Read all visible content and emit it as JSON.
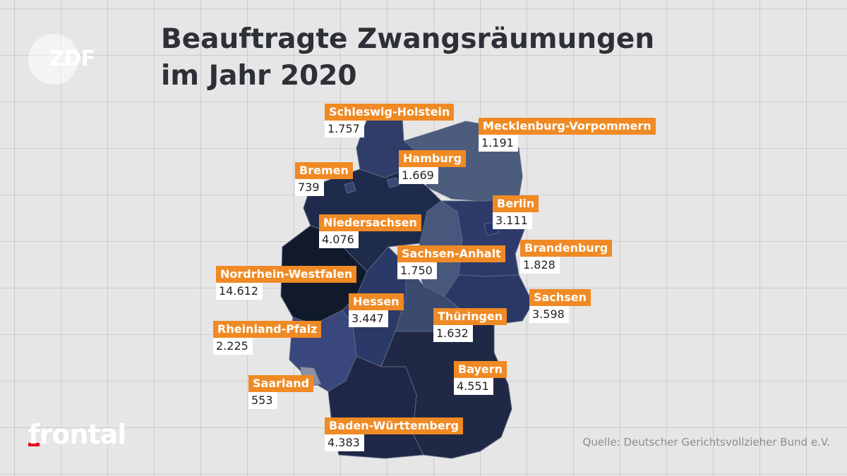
{
  "title_line1": "Beauftragte Zwangsräumungen",
  "title_line2": "im Jahr 2020",
  "logo": "ZDF",
  "brand": "frontal",
  "source": "Quelle: Deutscher Gerichtsvollzieher Bund e.V.",
  "regions": [
    {
      "name": "Schleswig-Holstein",
      "value": "1.757"
    },
    {
      "name": "Mecklenburg-Vorpommern",
      "value": "1.191"
    },
    {
      "name": "Hamburg",
      "value": "1.669"
    },
    {
      "name": "Bremen",
      "value": "739"
    },
    {
      "name": "Berlin",
      "value": "3.111"
    },
    {
      "name": "Niedersachsen",
      "value": "4.076"
    },
    {
      "name": "Brandenburg",
      "value": "1.828"
    },
    {
      "name": "Sachsen-Anhalt",
      "value": "1.750"
    },
    {
      "name": "Nordrhein-Westfalen",
      "value": "14.612"
    },
    {
      "name": "Hessen",
      "value": "3.447"
    },
    {
      "name": "Sachsen",
      "value": "3.598"
    },
    {
      "name": "Thüringen",
      "value": "1.632"
    },
    {
      "name": "Rheinland-Pfalz",
      "value": "2.225"
    },
    {
      "name": "Bayern",
      "value": "4.551"
    },
    {
      "name": "Saarland",
      "value": "553"
    },
    {
      "name": "Baden-Württemberg",
      "value": "4.383"
    }
  ]
}
